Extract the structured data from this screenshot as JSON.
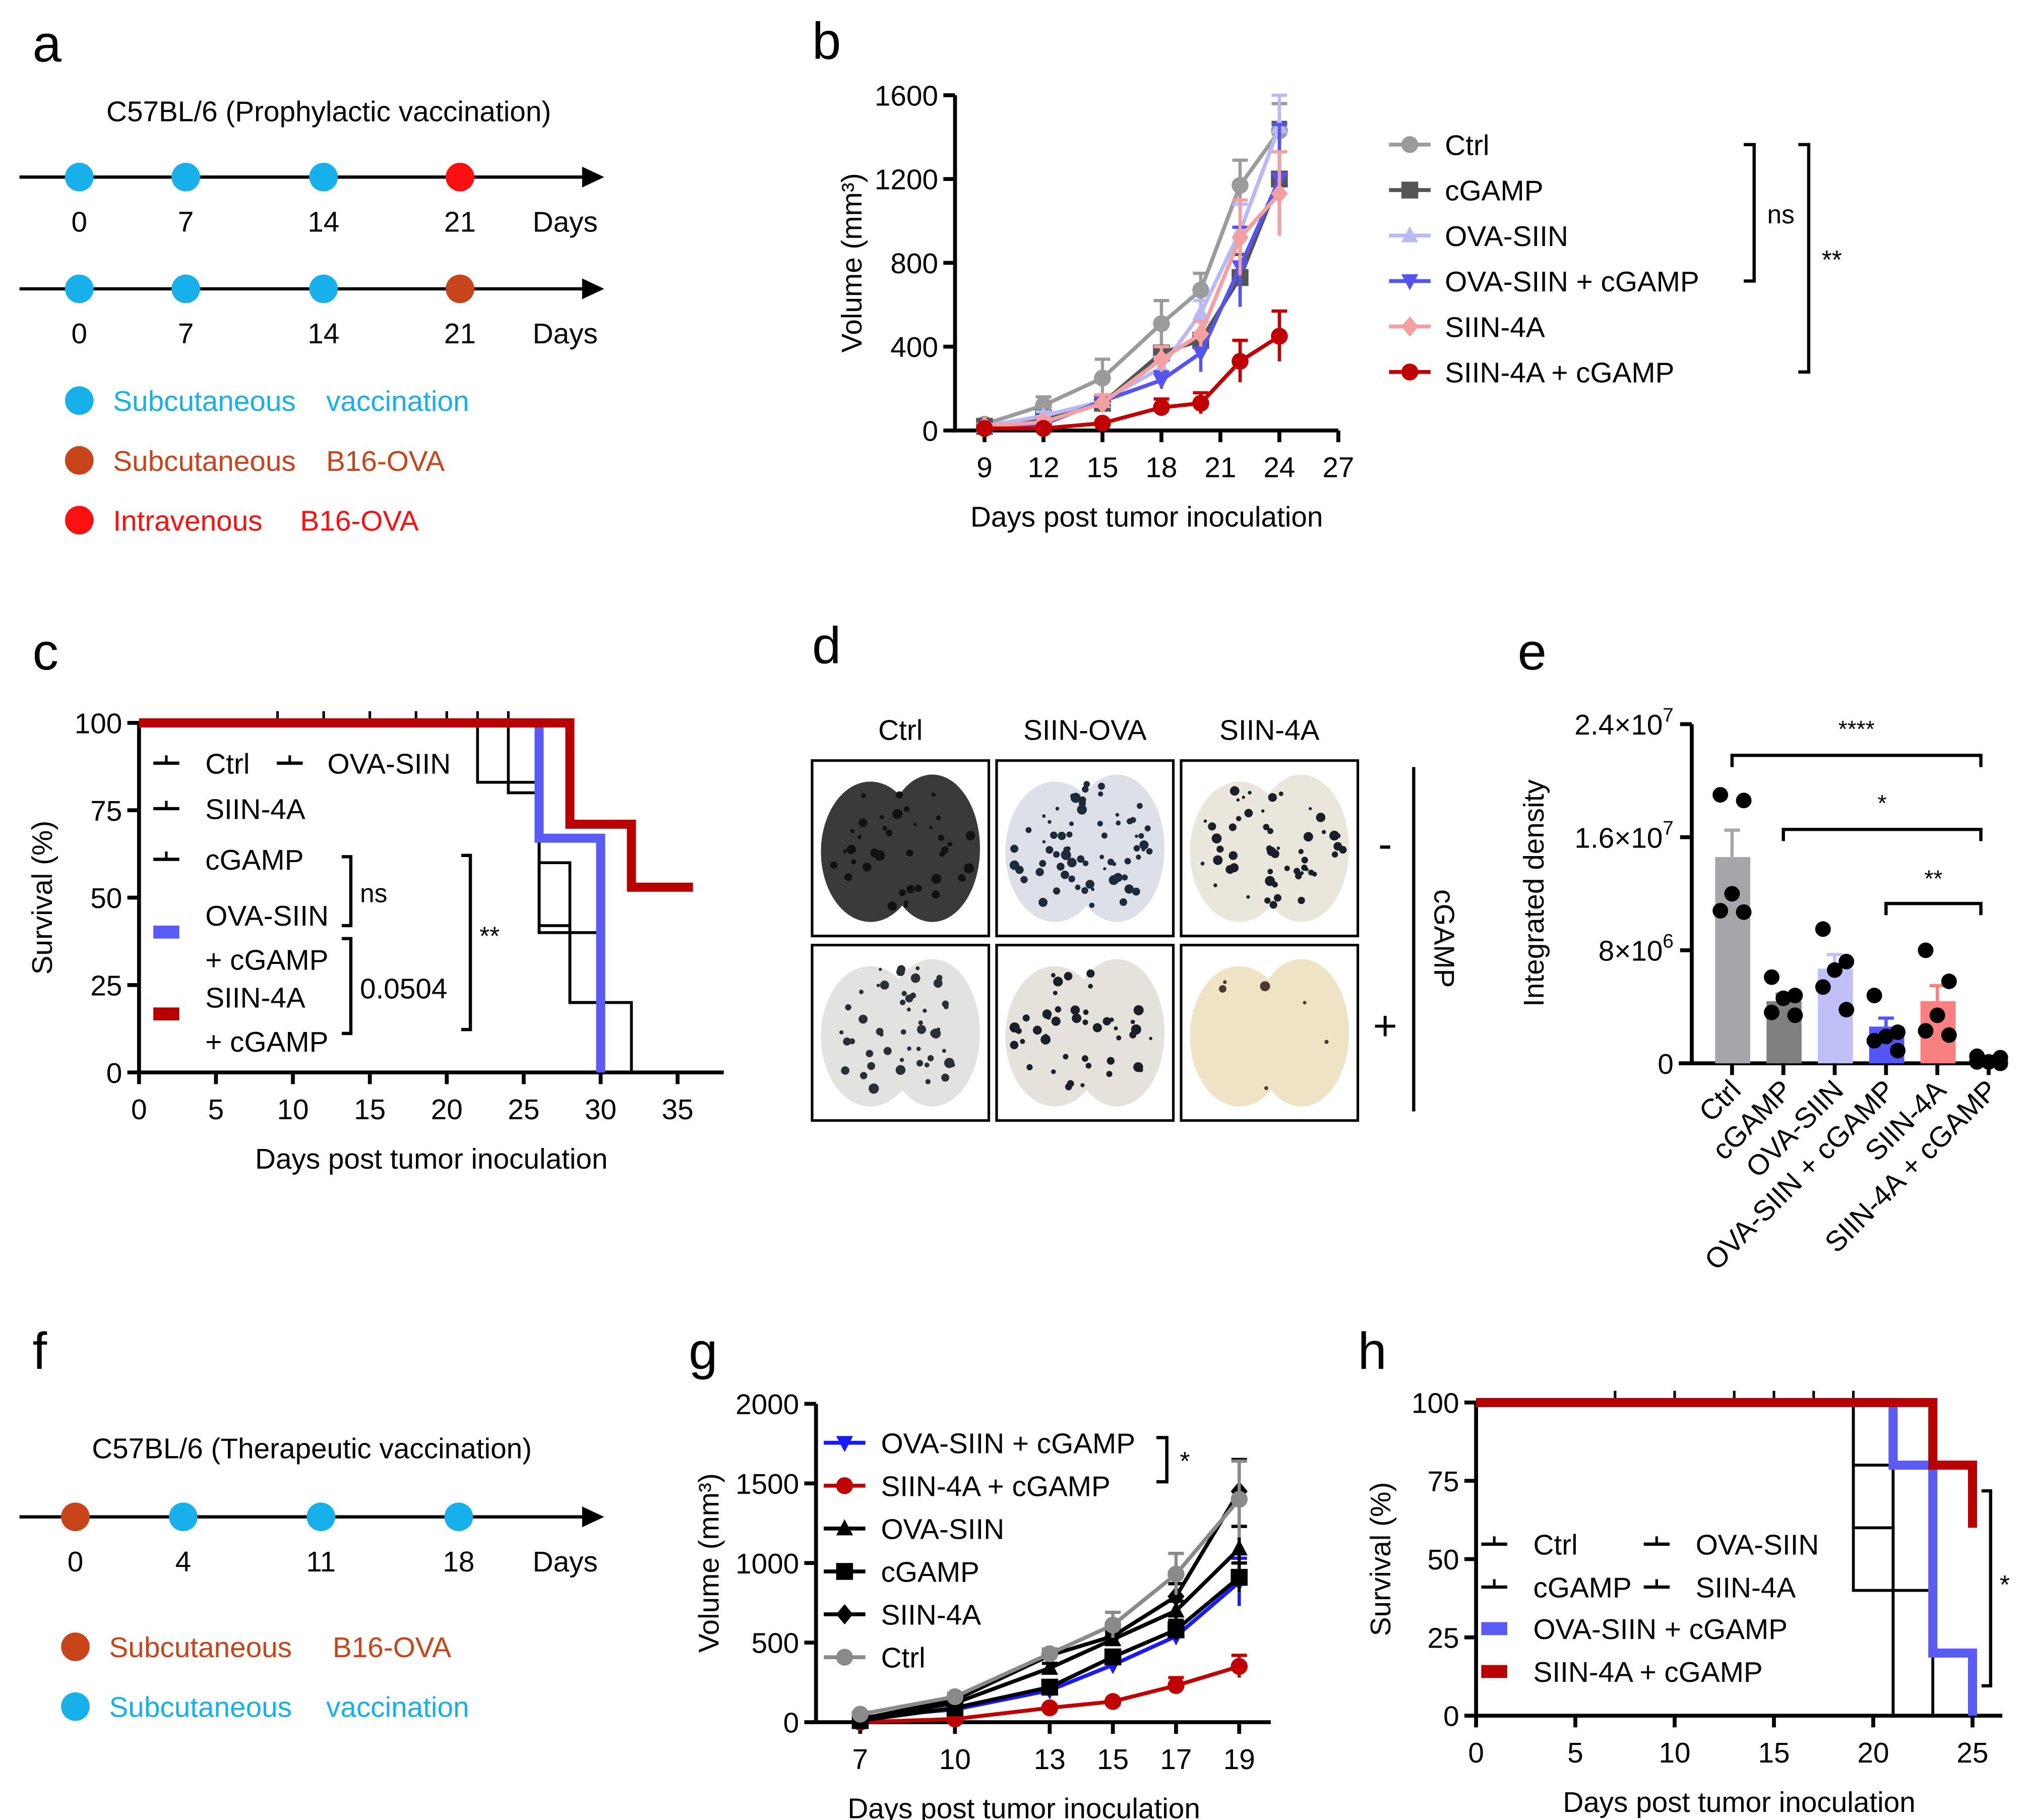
{
  "panels": {
    "a": {
      "letter": "a",
      "title": "C57BL/6 (Prophylactic vaccination)",
      "timelines": [
        {
          "ticks": [
            "0",
            "7",
            "14",
            "21"
          ],
          "unit": "Days",
          "dots": [
            "vaccination",
            "vaccination",
            "vaccination",
            "iv"
          ]
        },
        {
          "ticks": [
            "0",
            "7",
            "14",
            "21"
          ],
          "unit": "Days",
          "dots": [
            "vaccination",
            "vaccination",
            "vaccination",
            "sc"
          ]
        }
      ],
      "legend": [
        {
          "key": "vaccination",
          "route": "Subcutaneous",
          "agent": "vaccination",
          "color": "#17b0ea"
        },
        {
          "key": "sc",
          "route": "Subcutaneous",
          "agent": "B16-OVA",
          "color": "#c8441a"
        },
        {
          "key": "iv",
          "route": "Intravenous",
          "agent": "B16-OVA",
          "color": "#ff1010"
        }
      ]
    },
    "d": {
      "letter": "d",
      "columns": [
        "Ctrl",
        "SIIN-OVA",
        "SIIN-4A"
      ],
      "rows": [
        "-",
        "+"
      ],
      "side_label": "cGAMP"
    },
    "f": {
      "letter": "f",
      "title": "C57BL/6 (Therapeutic vaccination)",
      "timelines": [
        {
          "ticks": [
            "0",
            "4",
            "11",
            "18"
          ],
          "unit": "Days",
          "dots": [
            "sc",
            "vaccination",
            "vaccination",
            "vaccination"
          ]
        }
      ],
      "legend": [
        {
          "key": "sc",
          "route": "Subcutaneous",
          "agent": "B16-OVA",
          "color": "#c8441a"
        },
        {
          "key": "vaccination",
          "route": "Subcutaneous",
          "agent": "vaccination",
          "color": "#17b0ea"
        }
      ]
    }
  },
  "chart_data": [
    {
      "panel": "b",
      "type": "line",
      "xlabel": "Days post tumor inoculation",
      "ylabel": "Volume (mm³)",
      "xlim": [
        7.5,
        27
      ],
      "ylim": [
        0,
        1600
      ],
      "xticks": [
        9,
        12,
        15,
        18,
        21,
        24,
        27
      ],
      "yticks": [
        0,
        400,
        800,
        1200,
        1600
      ],
      "x": [
        9,
        12,
        15,
        18,
        20,
        22,
        24
      ],
      "series": [
        {
          "name": "Ctrl",
          "color": "#9b9b9b",
          "marker": "circle",
          "values": [
            30,
            120,
            250,
            510,
            670,
            1170,
            1430
          ],
          "err": [
            10,
            40,
            90,
            110,
            80,
            120,
            130
          ]
        },
        {
          "name": "cGAMP",
          "color": "#555555",
          "marker": "square",
          "values": [
            20,
            60,
            130,
            370,
            430,
            730,
            1200
          ],
          "err": [
            10,
            20,
            20,
            30,
            30,
            110,
            270
          ]
        },
        {
          "name": "OVA-SIIN",
          "color": "#b9b9f5",
          "marker": "triangle",
          "values": [
            20,
            70,
            140,
            300,
            560,
            950,
            1450
          ],
          "err": [
            10,
            20,
            30,
            50,
            60,
            130,
            150
          ]
        },
        {
          "name": "OVA-SIIN + cGAMP",
          "color": "#5454f0",
          "marker": "triangle-down",
          "values": [
            10,
            30,
            140,
            240,
            370,
            780,
            1200
          ],
          "err": [
            10,
            20,
            20,
            40,
            90,
            190,
            260
          ]
        },
        {
          "name": "SIIN-4A",
          "color": "#f5a0a0",
          "marker": "diamond",
          "values": [
            20,
            40,
            130,
            340,
            460,
            920,
            1130
          ],
          "err": [
            10,
            20,
            40,
            60,
            60,
            180,
            200
          ]
        },
        {
          "name": "SIIN-4A + cGAMP",
          "color": "#c00000",
          "marker": "circle",
          "values": [
            10,
            10,
            35,
            110,
            130,
            330,
            450
          ],
          "err": [
            5,
            5,
            10,
            40,
            50,
            100,
            120
          ]
        }
      ],
      "annotations": [
        {
          "label": "ns",
          "from": "Ctrl",
          "to": "OVA-SIIN + cGAMP"
        },
        {
          "label": "**",
          "from": "Ctrl",
          "to": "SIIN-4A + cGAMP"
        }
      ]
    },
    {
      "panel": "c",
      "type": "survival",
      "xlabel": "Days post tumor inoculation",
      "ylabel": "Survival (%)",
      "xlim": [
        0,
        38
      ],
      "ylim": [
        0,
        100
      ],
      "xticks": [
        0,
        5,
        10,
        15,
        20,
        25,
        30,
        35
      ],
      "yticks": [
        0,
        25,
        50,
        75,
        100
      ],
      "series": [
        {
          "name": "Ctrl",
          "legend_lines": [
            "Ctrl"
          ],
          "color": "#000000",
          "width": "thin",
          "steps": [
            [
              0,
              100
            ],
            [
              22,
              83
            ],
            [
              26,
              40
            ],
            [
              30,
              0
            ]
          ]
        },
        {
          "name": "OVA-SIIN",
          "legend_lines": [
            "OVA-SIIN"
          ],
          "color": "#000000",
          "width": "thin",
          "steps": [
            [
              0,
              100
            ],
            [
              26,
              42
            ],
            [
              28,
              20
            ],
            [
              32,
              0
            ]
          ]
        },
        {
          "name": "SIIN-4A",
          "legend_lines": [
            "SIIN-4A"
          ],
          "color": "#000000",
          "width": "thin",
          "steps": [
            [
              0,
              100
            ],
            [
              26,
              40
            ],
            [
              30,
              0
            ]
          ]
        },
        {
          "name": "cGAMP",
          "legend_lines": [
            "cGAMP"
          ],
          "color": "#000000",
          "width": "thin",
          "steps": [
            [
              0,
              100
            ],
            [
              24,
              80
            ],
            [
              26,
              60
            ],
            [
              28,
              20
            ],
            [
              30,
              0
            ]
          ]
        },
        {
          "name": "OVA-SIIN + cGAMP",
          "legend_lines": [
            "OVA-SIIN",
            "+ cGAMP"
          ],
          "color": "#5a5af5",
          "width": "thick",
          "steps": [
            [
              0,
              100
            ],
            [
              26,
              67
            ],
            [
              30,
              0
            ]
          ]
        },
        {
          "name": "SIIN-4A + cGAMP",
          "legend_lines": [
            "SIIN-4A",
            "+ cGAMP"
          ],
          "color": "#b80000",
          "width": "thick",
          "steps": [
            [
              0,
              100
            ],
            [
              28,
              71
            ],
            [
              32,
              53
            ],
            [
              36,
              53
            ]
          ]
        }
      ],
      "annotations": [
        {
          "label": "ns",
          "from": "cGAMP",
          "to": "OVA-SIIN + cGAMP"
        },
        {
          "label": "0.0504",
          "from": "OVA-SIIN + cGAMP",
          "to": "SIIN-4A + cGAMP"
        },
        {
          "label": "**",
          "from": "cGAMP",
          "to": "SIIN-4A + cGAMP"
        }
      ]
    },
    {
      "panel": "e",
      "type": "bar",
      "ylabel": "Integrated density",
      "ylim": [
        0,
        24000000
      ],
      "yticks": [
        0,
        8000000,
        16000000,
        24000000
      ],
      "ytick_labels": [
        {
          "base": "0",
          "exp": ""
        },
        {
          "base": "8×10",
          "exp": "6"
        },
        {
          "base": "1.6×10",
          "exp": "7"
        },
        {
          "base": "2.4×10",
          "exp": "7"
        }
      ],
      "categories": [
        "Ctrl",
        "cGAMP",
        "OVA-SIIN",
        "OVA-SIIN + cGAMP",
        "SIIN-4A",
        "SIIN-4A + cGAMP"
      ],
      "values": [
        14600000,
        4400000,
        6700000,
        2600000,
        4400000,
        300000
      ],
      "err": [
        1900000,
        500000,
        1000000,
        600000,
        1100000,
        200000
      ],
      "colors": [
        "#a5a5aa",
        "#808080",
        "#c0c0f8",
        "#5555f5",
        "#f88080",
        "#c00000"
      ],
      "points": [
        [
          19000000,
          18600000,
          12000000,
          10800000,
          10700000
        ],
        [
          6100000,
          4800000,
          4600000,
          3600000,
          3400000
        ],
        [
          9500000,
          7200000,
          6600000,
          5400000,
          3800000
        ],
        [
          4800000,
          2200000,
          1900000,
          1600000,
          900000
        ],
        [
          8000000,
          5800000,
          3400000,
          2300000,
          2000000
        ],
        [
          500000,
          400000,
          100000,
          100000,
          0
        ]
      ],
      "significance": [
        {
          "label": "****",
          "from": 0,
          "to": 5
        },
        {
          "label": "*",
          "from": 1,
          "to": 5
        },
        {
          "label": "**",
          "from": 3,
          "to": 5
        }
      ]
    },
    {
      "panel": "g",
      "type": "line",
      "xlabel": "Days post tumor inoculation",
      "ylabel": "Volume (mm³)",
      "xlim": [
        5.6,
        20
      ],
      "ylim": [
        0,
        2000
      ],
      "xticks": [
        7,
        10,
        13,
        15,
        17,
        19
      ],
      "yticks": [
        0,
        500,
        1000,
        1500,
        2000
      ],
      "x": [
        7,
        10,
        13,
        15,
        17,
        19
      ],
      "series": [
        {
          "name": "OVA-SIIN + cGAMP",
          "color": "#1a1aff",
          "marker": "triangle-down",
          "values": [
            30,
            80,
            200,
            360,
            540,
            880
          ],
          "err": [
            20,
            10,
            20,
            20,
            30,
            150
          ]
        },
        {
          "name": "SIIN-4A + cGAMP",
          "color": "#c00000",
          "marker": "circle",
          "values": [
            0,
            20,
            90,
            130,
            230,
            350
          ],
          "err": [
            5,
            5,
            10,
            10,
            50,
            70
          ]
        },
        {
          "name": "OVA-SIIN",
          "color": "#000000",
          "marker": "triangle",
          "values": [
            20,
            120,
            340,
            520,
            700,
            1090
          ],
          "err": [
            10,
            20,
            30,
            40,
            60,
            140
          ]
        },
        {
          "name": "cGAMP",
          "color": "#000000",
          "marker": "square",
          "values": [
            10,
            90,
            220,
            410,
            580,
            910
          ],
          "err": [
            10,
            20,
            30,
            40,
            60,
            90
          ]
        },
        {
          "name": "SIIN-4A",
          "color": "#000000",
          "marker": "diamond",
          "values": [
            20,
            140,
            420,
            540,
            790,
            1450
          ],
          "err": [
            10,
            20,
            40,
            40,
            80,
            200
          ]
        },
        {
          "name": "Ctrl",
          "color": "#8a8a8a",
          "marker": "circle",
          "values": [
            50,
            160,
            430,
            610,
            930,
            1400
          ],
          "err": [
            10,
            20,
            30,
            80,
            130,
            240
          ]
        }
      ],
      "annotations": [
        {
          "label": "*",
          "from": "OVA-SIIN + cGAMP",
          "to": "SIIN-4A + cGAMP"
        }
      ]
    },
    {
      "panel": "h",
      "type": "survival",
      "xlabel": "Days post tumor inoculation",
      "ylabel": "Survival (%)",
      "xlim": [
        0,
        26.5
      ],
      "ylim": [
        0,
        100
      ],
      "xticks": [
        0,
        5,
        10,
        15,
        20,
        25
      ],
      "yticks": [
        0,
        25,
        50,
        75,
        100
      ],
      "series": [
        {
          "name": "Ctrl",
          "legend_lines": [
            "Ctrl"
          ],
          "color": "#000000",
          "width": "thin",
          "steps": [
            [
              0,
              100
            ],
            [
              19,
              80
            ],
            [
              21,
              0
            ]
          ]
        },
        {
          "name": "OVA-SIIN",
          "legend_lines": [
            "OVA-SIIN"
          ],
          "color": "#000000",
          "width": "thin",
          "steps": [
            [
              0,
              100
            ],
            [
              19,
              40
            ],
            [
              23,
              0
            ]
          ]
        },
        {
          "name": "cGAMP",
          "legend_lines": [
            "cGAMP"
          ],
          "color": "#000000",
          "width": "thin",
          "steps": [
            [
              0,
              100
            ],
            [
              19,
              60
            ],
            [
              21,
              0
            ]
          ]
        },
        {
          "name": "SIIN-4A",
          "legend_lines": [
            "SIIN-4A"
          ],
          "color": "#000000",
          "width": "thin",
          "steps": [
            [
              0,
              100
            ],
            [
              21,
              0
            ]
          ]
        },
        {
          "name": "OVA-SIIN + cGAMP",
          "legend_lines": [
            "OVA-SIIN + cGAMP"
          ],
          "color": "#5a5af5",
          "width": "thick",
          "steps": [
            [
              0,
              100
            ],
            [
              21,
              80
            ],
            [
              23,
              20
            ],
            [
              25,
              0
            ]
          ]
        },
        {
          "name": "SIIN-4A + cGAMP",
          "legend_lines": [
            "SIIN-4A + cGAMP"
          ],
          "color": "#b80000",
          "width": "thick",
          "steps": [
            [
              0,
              100
            ],
            [
              23,
              80
            ],
            [
              25,
              60
            ]
          ]
        }
      ],
      "annotations": [
        {
          "label": "*",
          "from": "OVA-SIIN + cGAMP",
          "to": "SIIN-4A + cGAMP"
        }
      ]
    }
  ]
}
